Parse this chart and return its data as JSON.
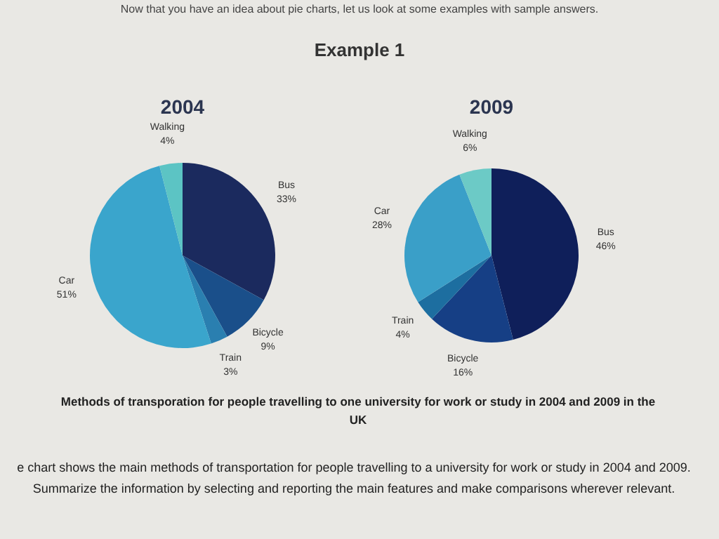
{
  "chart_data": [
    {
      "type": "pie",
      "title": "2004",
      "categories": [
        "Bus",
        "Bicycle",
        "Train",
        "Car",
        "Walking"
      ],
      "values": [
        33,
        9,
        3,
        51,
        4
      ],
      "colors": [
        "#1b2a5e",
        "#1a4f8a",
        "#2a7fb0",
        "#3aa5cc",
        "#5cc4c4"
      ],
      "value_labels": [
        "33%",
        "9%",
        "3%",
        "51%",
        "4%"
      ],
      "legend": false,
      "annotations": [
        "Now that you have an idea about pie charts, let us look at some examples with sample answers.",
        "Example 1"
      ]
    },
    {
      "type": "pie",
      "title": "2009",
      "categories": [
        "Bus",
        "Bicycle",
        "Train",
        "Car",
        "Walking"
      ],
      "values": [
        46,
        16,
        4,
        28,
        6
      ],
      "colors": [
        "#0f1f5a",
        "#163f85",
        "#1d6ea0",
        "#3a9fc8",
        "#6ccac6"
      ],
      "value_labels": [
        "46%",
        "16%",
        "4%",
        "28%",
        "6%"
      ],
      "legend": false,
      "annotations": [
        "Methods of transporation for people travelling to one university for work or study in 2004 and 2009 in the UK",
        "e chart shows the main methods of transportation for people travelling to a university for work or study in 2004 and 2009. Summarize the information by selecting and reporting the main features and make comparisons wherever relevant."
      ]
    }
  ]
}
